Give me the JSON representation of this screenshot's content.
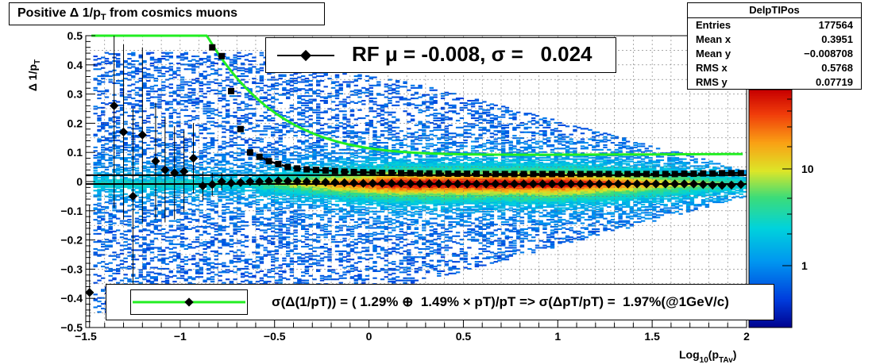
{
  "title": "Positive Δ 1/p",
  "title_sub": "T",
  "title_rest": " from cosmics muons",
  "stats": {
    "name": "DelpTIPos",
    "rows": [
      {
        "label": "Entries",
        "value": "177564"
      },
      {
        "label": "Mean x",
        "value": "0.3951"
      },
      {
        "label": "Mean y",
        "value": "−0.008708"
      },
      {
        "label": "RMS x",
        "value": "0.5768"
      },
      {
        "label": "RMS y",
        "value": "0.07719"
      }
    ]
  },
  "fit_legend": "RF μ = -0.008, σ =   0.024",
  "resolution_legend": "σ(Δ(1/pT)) = ( 1.29% ⊕  1.49% × pT)/pT => σ(ΔpT/pT) =  1.97%(@1GeV/c)",
  "ylabel": "Δ 1/p",
  "ylabel_sub": "T",
  "xlabel": "Log",
  "xlabel_sub1": "10",
  "xlabel_mid": "(p",
  "xlabel_sub2": "TAv",
  "xlabel_end": ")",
  "colors": {
    "fit_curve": "#22ee22",
    "points": "#000000"
  },
  "chart_data": {
    "type": "heatmap",
    "xlim": [
      -1.5,
      2
    ],
    "ylim": [
      -0.5,
      0.5
    ],
    "x_ticks": [
      "−1.5",
      "−1",
      "−0.5",
      "0",
      "0.5",
      "1",
      "1.5",
      "2"
    ],
    "y_ticks": [
      "0.5",
      "0.4",
      "0.3",
      "0.2",
      "0.1",
      "0",
      "−0.1",
      "−0.2",
      "−0.3",
      "−0.4",
      "−0.5"
    ],
    "colorbar_ticks": [
      "10",
      "1"
    ],
    "grid": true,
    "mean_points": {
      "x": [
        -1.48,
        -1.35,
        -1.3,
        -1.25,
        -1.2,
        -1.13,
        -1.08,
        -1.03,
        -0.98,
        -0.93,
        -0.88,
        -0.83,
        -0.78,
        -0.73,
        -0.68,
        -0.63,
        -0.58,
        -0.53,
        -0.48,
        -0.43,
        -0.38,
        -0.33,
        -0.28,
        -0.23,
        -0.18,
        -0.13,
        -0.08,
        -0.03,
        0.02,
        0.07,
        0.12,
        0.17,
        0.22,
        0.27,
        0.32,
        0.37,
        0.42,
        0.47,
        0.52,
        0.57,
        0.62,
        0.67,
        0.72,
        0.77,
        0.82,
        0.87,
        0.92,
        0.97,
        1.02,
        1.07,
        1.12,
        1.17,
        1.22,
        1.27,
        1.32,
        1.37,
        1.42,
        1.47,
        1.52,
        1.57,
        1.62,
        1.67,
        1.72,
        1.77,
        1.82,
        1.87,
        1.92,
        1.97
      ],
      "y": [
        -0.38,
        0.26,
        0.17,
        -0.05,
        0.16,
        0.07,
        0.04,
        0.03,
        0.035,
        0.08,
        -0.015,
        -0.01,
        0.0,
        -0.005,
        -0.003,
        0.0,
        0.0,
        0.002,
        0.003,
        0.002,
        0.001,
        0.0,
        -0.001,
        -0.002,
        -0.003,
        -0.004,
        -0.005,
        -0.006,
        -0.006,
        -0.006,
        -0.006,
        -0.006,
        -0.007,
        -0.007,
        -0.007,
        -0.007,
        -0.007,
        -0.008,
        -0.008,
        -0.008,
        -0.008,
        -0.008,
        -0.008,
        -0.008,
        -0.008,
        -0.008,
        -0.008,
        -0.008,
        -0.008,
        -0.008,
        -0.008,
        -0.008,
        -0.008,
        -0.008,
        -0.008,
        -0.008,
        -0.008,
        -0.008,
        -0.008,
        -0.008,
        -0.008,
        -0.008,
        -0.008,
        -0.01,
        -0.012,
        -0.013,
        -0.012,
        -0.01
      ],
      "yerr": [
        0.3,
        0.35,
        0.3,
        0.3,
        0.3,
        0.2,
        0.18,
        0.16,
        0.14,
        0.12,
        0.05,
        0.04,
        0.03,
        0.02,
        0.015,
        0.01,
        0.008,
        0.006,
        0.005,
        0.004,
        0.004,
        0.003,
        0.003,
        0.003,
        0.003,
        0.003,
        0.003,
        0.003,
        0.003,
        0.003,
        0.003,
        0.003,
        0.003,
        0.003,
        0.003,
        0.003,
        0.003,
        0.003,
        0.003,
        0.003,
        0.003,
        0.003,
        0.003,
        0.003,
        0.003,
        0.003,
        0.003,
        0.003,
        0.003,
        0.003,
        0.003,
        0.003,
        0.003,
        0.003,
        0.003,
        0.003,
        0.003,
        0.003,
        0.003,
        0.003,
        0.003,
        0.003,
        0.003,
        0.003,
        0.004,
        0.004,
        0.004,
        0.004
      ]
    },
    "sigma_points": {
      "x": [
        -0.83,
        -0.78,
        -0.73,
        -0.68,
        -0.63,
        -0.58,
        -0.53,
        -0.48,
        -0.43,
        -0.38,
        -0.33,
        -0.28,
        -0.23,
        -0.18,
        -0.13,
        -0.08,
        -0.03,
        0.02,
        0.07,
        0.12,
        0.17,
        0.22,
        0.27,
        0.32,
        0.37,
        0.42,
        0.47,
        0.52,
        0.57,
        0.62,
        0.67,
        0.72,
        0.77,
        0.82,
        0.87,
        0.92,
        0.97,
        1.02,
        1.07,
        1.12,
        1.17,
        1.22,
        1.27,
        1.32,
        1.37,
        1.42,
        1.47,
        1.52,
        1.57,
        1.62,
        1.67,
        1.72,
        1.77,
        1.82,
        1.87,
        1.92,
        1.97
      ],
      "y": [
        0.46,
        0.43,
        0.31,
        0.18,
        0.1,
        0.085,
        0.07,
        0.06,
        0.05,
        0.045,
        0.042,
        0.04,
        0.038,
        0.036,
        0.034,
        0.033,
        0.032,
        0.031,
        0.03,
        0.03,
        0.029,
        0.029,
        0.028,
        0.028,
        0.028,
        0.027,
        0.027,
        0.027,
        0.027,
        0.026,
        0.026,
        0.026,
        0.026,
        0.026,
        0.026,
        0.026,
        0.026,
        0.026,
        0.026,
        0.026,
        0.026,
        0.026,
        0.026,
        0.026,
        0.026,
        0.026,
        0.026,
        0.026,
        0.026,
        0.026,
        0.027,
        0.027,
        0.028,
        0.028,
        0.029,
        0.029,
        0.029
      ]
    },
    "fit_mean": -0.008,
    "fit_sigma": 0.024,
    "resolution_fit": {
      "a_percent": 1.29,
      "b_percent": 1.49
    }
  }
}
